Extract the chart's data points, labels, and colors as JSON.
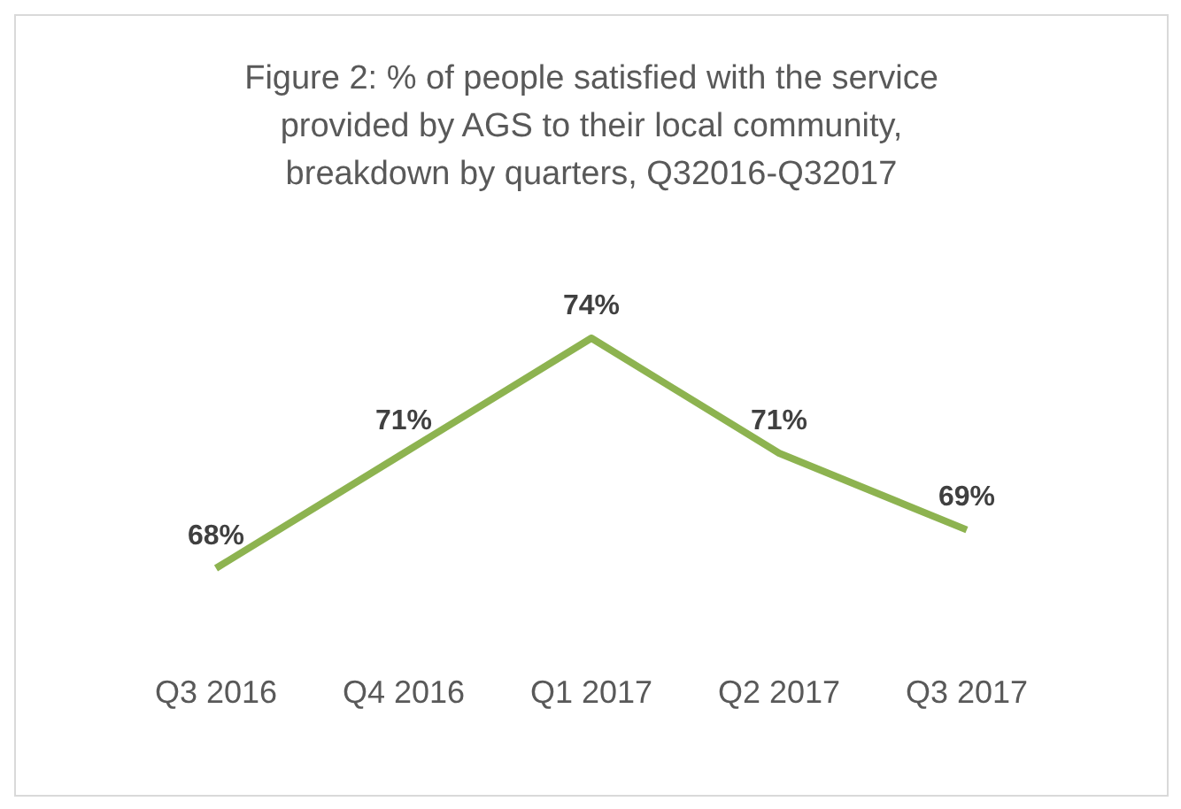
{
  "chart_data": {
    "type": "line",
    "title": "Figure 2: % of people satisfied with the service provided by AGS to their local community, breakdown by quarters, Q32016-Q32017",
    "categories": [
      "Q3 2016",
      "Q4 2016",
      "Q1 2017",
      "Q2 2017",
      "Q3 2017"
    ],
    "series": [
      {
        "color": "#8db350",
        "values": [
          68,
          71,
          74,
          71,
          69
        ],
        "value_labels": [
          "68%",
          "71%",
          "74%",
          "71%",
          "69%"
        ]
      }
    ],
    "marker": "none",
    "grid": false,
    "legend": false,
    "tick_labels": "x"
  }
}
